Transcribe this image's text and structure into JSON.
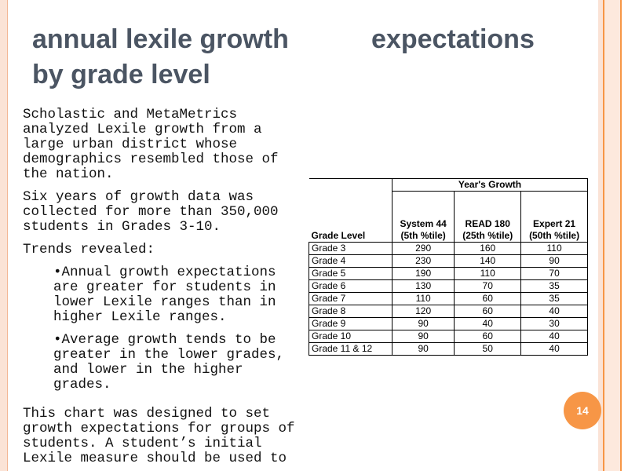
{
  "title": {
    "line1": "annual lexile growth",
    "line1b": "expectations",
    "line2": "by grade level"
  },
  "body": {
    "paragraphs": [
      "Scholastic and MetaMetrics analyzed Lexile growth from a large urban district whose demographics resembled those of the nation.",
      "Six years of growth data was collected for more than 350,000 students in Grades 3-10.",
      "Trends revealed:"
    ],
    "bullets": [
      "Annual growth expectations are greater for students in lower Lexile ranges than in higher Lexile ranges.",
      "Average growth tends to be greater in  the lower grades, and lower in the higher grades."
    ],
    "closing": "This chart was designed to set growth expectations for groups of students. A student’s initial Lexile measure should be used to"
  },
  "table": {
    "group_header": "Year's Growth",
    "first_header": "Grade Level",
    "columns": [
      {
        "name": "System 44",
        "sub": "(5th %tile)"
      },
      {
        "name": "READ 180",
        "sub": "(25th %tile)"
      },
      {
        "name": "Expert 21",
        "sub": "(50th %tile)"
      }
    ],
    "rows": [
      [
        "Grade 3",
        290,
        160,
        110
      ],
      [
        "Grade 4",
        230,
        140,
        90
      ],
      [
        "Grade 5",
        190,
        110,
        70
      ],
      [
        "Grade 6",
        130,
        70,
        35
      ],
      [
        "Grade 7",
        110,
        60,
        35
      ],
      [
        "Grade 8",
        120,
        60,
        40
      ],
      [
        "Grade 9",
        90,
        40,
        30
      ],
      [
        "Grade 10",
        90,
        60,
        40
      ],
      [
        "Grade 11 & 12",
        90,
        50,
        40
      ]
    ]
  },
  "page_number": "14"
}
